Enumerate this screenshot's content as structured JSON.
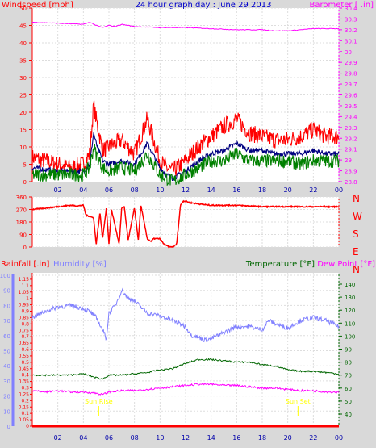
{
  "chart_data": [
    {
      "type": "line",
      "title": "24 hour graph day : June 29 2013",
      "left_axis_label": "Windspeed [mph]",
      "right_axis_label": "Barometer [ .in]",
      "left_ticks": [
        "0",
        "5",
        "10",
        "15",
        "20",
        "25",
        "30",
        "35",
        "40",
        "45",
        "50"
      ],
      "right_ticks": [
        "28.8",
        "28.9",
        "29",
        "29.1",
        "29.2",
        "29.3",
        "29.4",
        "29.5",
        "29.6",
        "29.7",
        "29.8",
        "29.9",
        "30",
        "30.1",
        "30.2",
        "30.3",
        "30.4"
      ],
      "x_ticks": [
        "02",
        "04",
        "06",
        "08",
        "10",
        "12",
        "14",
        "16",
        "18",
        "20",
        "22",
        "00"
      ],
      "ylim": [
        0,
        50
      ],
      "y2lim": [
        28.8,
        30.4
      ],
      "series": [
        {
          "name": "gust",
          "color": "#ff0000",
          "x": [
            0,
            2,
            3,
            4,
            4.5,
            4.8,
            5,
            5.5,
            6,
            7,
            8,
            9,
            10,
            10.5,
            11,
            12,
            13,
            14,
            15,
            16,
            17,
            18,
            19,
            20,
            21,
            22,
            23,
            24
          ],
          "values": [
            7,
            5,
            4,
            5,
            8,
            22,
            18,
            9,
            10,
            12,
            8,
            18,
            6,
            4,
            3,
            6,
            10,
            13,
            16,
            18,
            14,
            13,
            12,
            12,
            13,
            15,
            13,
            13
          ]
        },
        {
          "name": "average",
          "color": "#000080",
          "x": [
            0,
            2,
            3,
            4,
            4.5,
            4.8,
            5,
            5.5,
            6,
            7,
            8,
            9,
            10,
            10.5,
            11,
            12,
            13,
            14,
            15,
            16,
            17,
            18,
            19,
            20,
            21,
            22,
            23,
            24
          ],
          "values": [
            4,
            3,
            3,
            3,
            5,
            14,
            11,
            6,
            5,
            6,
            5,
            11,
            4,
            2,
            1,
            3,
            6,
            8,
            9,
            11,
            9,
            9,
            8,
            8,
            8,
            9,
            8,
            8
          ]
        },
        {
          "name": "low",
          "color": "#008000",
          "x": [
            0,
            2,
            3,
            4,
            4.5,
            4.8,
            5,
            5.5,
            6,
            7,
            8,
            9,
            10,
            10.5,
            11,
            12,
            13,
            14,
            15,
            16,
            17,
            18,
            19,
            20,
            21,
            22,
            23,
            24
          ],
          "values": [
            2,
            2,
            2,
            2,
            4,
            10,
            8,
            4,
            3,
            4,
            3,
            8,
            2,
            1,
            0,
            2,
            4,
            6,
            6,
            8,
            6,
            6,
            6,
            6,
            5,
            6,
            6,
            6
          ]
        },
        {
          "name": "barometer",
          "color": "#ff00ff",
          "axis": "right",
          "x": [
            0,
            2,
            4,
            4.5,
            5,
            5.5,
            6,
            6.5,
            7,
            8,
            10,
            12,
            14,
            16,
            18,
            19,
            20,
            21,
            22,
            24
          ],
          "values": [
            30.27,
            30.26,
            30.25,
            30.27,
            30.24,
            30.22,
            30.24,
            30.23,
            30.25,
            30.23,
            30.22,
            30.22,
            30.21,
            30.2,
            30.2,
            30.19,
            30.19,
            30.2,
            30.21,
            30.21
          ]
        }
      ]
    },
    {
      "type": "line",
      "left_ticks": [
        "360",
        "270",
        "180",
        "90",
        "0"
      ],
      "right_labels": [
        "N",
        "W",
        "S",
        "E",
        "N"
      ],
      "ylim": [
        0,
        360
      ],
      "series": [
        {
          "name": "wind direction",
          "color": "#ff0000",
          "x": [
            0,
            1,
            2,
            3,
            3.5,
            4,
            4.2,
            4.8,
            5,
            5.3,
            5.5,
            5.8,
            6,
            6.2,
            6.8,
            7,
            7.2,
            7.5,
            8,
            8.3,
            8.5,
            9,
            9.3,
            9.5,
            10,
            10.3,
            10.5,
            10.8,
            11,
            11.3,
            11.6,
            11.8,
            12,
            12.3,
            13,
            14,
            16,
            18,
            20,
            22,
            24
          ],
          "values": [
            270,
            280,
            290,
            300,
            295,
            300,
            230,
            210,
            20,
            250,
            60,
            280,
            20,
            270,
            20,
            280,
            290,
            50,
            280,
            50,
            300,
            60,
            40,
            60,
            60,
            20,
            10,
            0,
            0,
            20,
            300,
            330,
            330,
            320,
            310,
            300,
            300,
            290,
            290,
            290,
            290
          ]
        }
      ]
    },
    {
      "type": "line",
      "left1_axis_label": "Rainfall [.in]",
      "left2_axis_label": "Humidity [%]",
      "right1_axis_label": "Temperature [°F]",
      "right2_axis_label": "Dew Point [°F]",
      "rain_ticks": [
        "0",
        "0.05",
        "0.1",
        "0.15",
        "0.2",
        "0.25",
        "0.3",
        "0.35",
        "0.4",
        "0.45",
        "0.5",
        "0.55",
        "0.6",
        "0.65",
        "0.7",
        "0.75",
        "0.8",
        "0.85",
        "0.9",
        "0.95",
        "1",
        "1.05",
        "1.1",
        "1.15"
      ],
      "humidity_ticks": [
        "0",
        "10",
        "20",
        "30",
        "40",
        "50",
        "60",
        "70",
        "80",
        "90",
        "100"
      ],
      "temp_ticks": [
        "40",
        "50",
        "60",
        "70",
        "80",
        "90",
        "100",
        "110",
        "120",
        "130",
        "140"
      ],
      "x_ticks": [
        "02",
        "04",
        "06",
        "08",
        "10",
        "12",
        "14",
        "16",
        "18",
        "20",
        "22",
        "00"
      ],
      "annotations": [
        "Sun Rise",
        "Sun Set"
      ],
      "series": [
        {
          "name": "Humidity",
          "color": "#8080ff",
          "x": [
            0,
            1,
            2,
            3,
            4,
            4.5,
            5,
            5.5,
            5.8,
            6,
            6.5,
            7,
            7.5,
            8,
            9,
            10,
            11,
            12,
            12.5,
            13,
            13.5,
            14,
            14.5,
            15,
            16,
            17,
            18,
            18.5,
            19,
            20,
            21,
            22,
            23,
            24
          ],
          "values": [
            72,
            76,
            79,
            80,
            78,
            76,
            72,
            64,
            58,
            75,
            80,
            90,
            85,
            83,
            75,
            73,
            70,
            66,
            60,
            59,
            57,
            58,
            60,
            62,
            66,
            66,
            64,
            70,
            68,
            65,
            70,
            72,
            70,
            66
          ]
        },
        {
          "name": "Temperature",
          "color": "#006600",
          "x": [
            0,
            1,
            2,
            3,
            4,
            5,
            5.5,
            6,
            7,
            8,
            9,
            10,
            11,
            12,
            13,
            14,
            15,
            16,
            17,
            18,
            19,
            20,
            21,
            22,
            23,
            24
          ],
          "values": [
            70,
            70,
            70,
            70,
            71,
            68,
            67,
            70,
            70,
            71,
            72,
            74,
            75,
            79,
            82,
            82,
            81,
            80,
            80,
            78,
            77,
            74,
            73,
            73,
            72,
            71
          ]
        },
        {
          "name": "Dew Point",
          "color": "#ff00ff",
          "x": [
            0,
            1,
            2,
            3,
            4,
            5,
            5.5,
            6,
            7,
            8,
            9,
            10,
            11,
            12,
            13,
            14,
            15,
            16,
            17,
            18,
            19,
            20,
            21,
            22,
            23,
            24
          ],
          "values": [
            58,
            57,
            58,
            57,
            57,
            56,
            55,
            57,
            58,
            58,
            59,
            60,
            61,
            62,
            63,
            63,
            62,
            62,
            61,
            60,
            60,
            59,
            58,
            58,
            57,
            57
          ]
        },
        {
          "name": "Rainfall",
          "color": "#ff0000",
          "x": [
            0,
            24
          ],
          "values": [
            0,
            0
          ]
        }
      ]
    }
  ]
}
